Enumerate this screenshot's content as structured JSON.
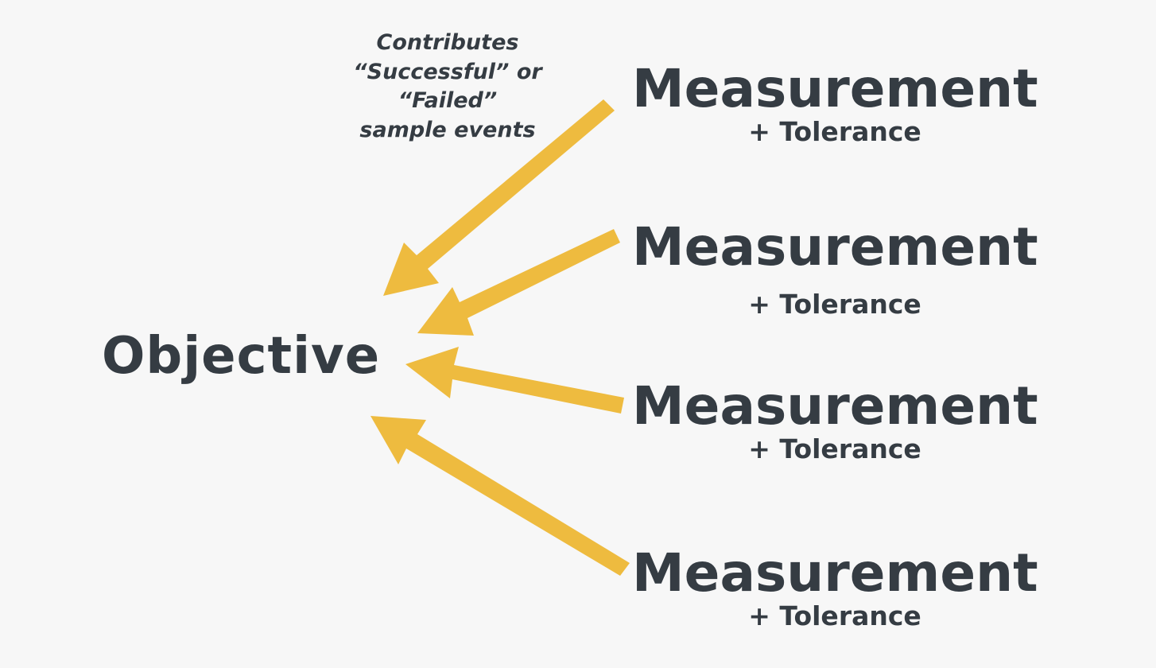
{
  "objective": {
    "label": "Objective"
  },
  "annotation": {
    "lines": [
      "Contributes",
      "“Successful” or",
      "“Failed”",
      "sample events"
    ]
  },
  "measurements": [
    {
      "title": "Measurement",
      "tolerance": "+ Tolerance"
    },
    {
      "title": "Measurement",
      "tolerance": "+ Tolerance"
    },
    {
      "title": "Measurement",
      "tolerance": "+ Tolerance"
    },
    {
      "title": "Measurement",
      "tolerance": "+ Tolerance"
    }
  ],
  "colors": {
    "background": "#f7f7f7",
    "text": "#353c43",
    "arrow": "#eebb3f"
  }
}
